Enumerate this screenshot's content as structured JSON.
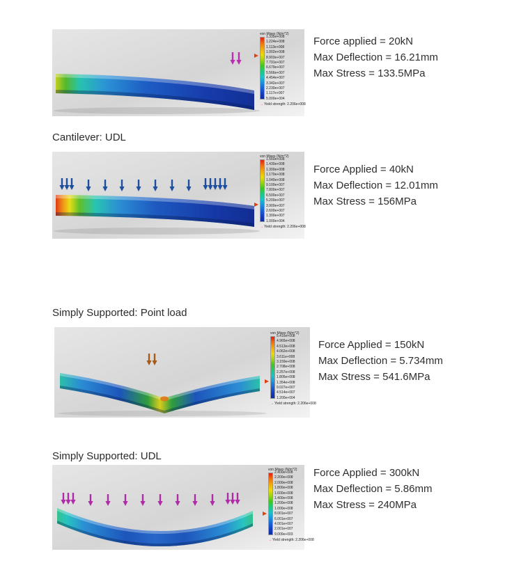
{
  "page": {
    "background_color": "#ffffff"
  },
  "legend": {
    "title": "von Mises (N/m^2)",
    "yield_label": "Yield strength: 2.206e+008"
  },
  "sections": [
    {
      "results": [
        "Force applied = 20kN",
        "Max Deflection = 16.21mm",
        "Max Stress = 133.5MPa"
      ],
      "arrow_color": "#b92fb0",
      "legend_ticks": [
        "1.335e+008",
        "1.224e+008",
        "1.113e+008",
        "1.002e+008",
        "8.903e+007",
        "7.791e+007",
        "6.679e+007",
        "5.566e+007",
        "4.454e+007",
        "3.342e+007",
        "2.230e+007",
        "1.117e+007",
        "5.000e+004"
      ]
    },
    {
      "label": "Cantilever: UDL",
      "results": [
        "Force Applied = 40kN",
        "Max Deflection = 12.01mm",
        "Max Stress = 156MPa"
      ],
      "arrow_color": "#1d4f9e",
      "legend_ticks": [
        "1.560e+008",
        "1.430e+008",
        "1.300e+008",
        "1.170e+008",
        "1.040e+008",
        "9.100e+007",
        "7.800e+007",
        "6.500e+007",
        "5.200e+007",
        "3.900e+007",
        "2.600e+007",
        "1.300e+007",
        "1.000e+004"
      ]
    },
    {
      "label": "Simply Supported: Point load",
      "results": [
        "Force Applied = 150kN",
        "Max Deflection = 5.734mm",
        "Max Stress = 541.6MPa"
      ],
      "arrow_color": "#a85a18",
      "legend_ticks": [
        "5.416e+008",
        "4.965e+008",
        "4.513e+008",
        "4.062e+008",
        "3.611e+008",
        "3.159e+008",
        "2.708e+008",
        "2.257e+008",
        "1.805e+008",
        "1.354e+008",
        "9.027e+007",
        "4.514e+007",
        "1.200e+004"
      ]
    },
    {
      "label": "Simply Supported: UDL",
      "results": [
        "Force Applied = 300kN",
        "Max Deflection = 5.86mm",
        "Max Stress = 240MPa"
      ],
      "arrow_color": "#b02ba8",
      "legend_ticks": [
        "2.400e+008",
        "2.200e+008",
        "2.000e+008",
        "1.800e+008",
        "1.600e+008",
        "1.400e+008",
        "1.200e+008",
        "1.000e+008",
        "8.001e+007",
        "6.001e+007",
        "4.001e+007",
        "2.001e+007",
        "9.000e+003"
      ]
    }
  ]
}
